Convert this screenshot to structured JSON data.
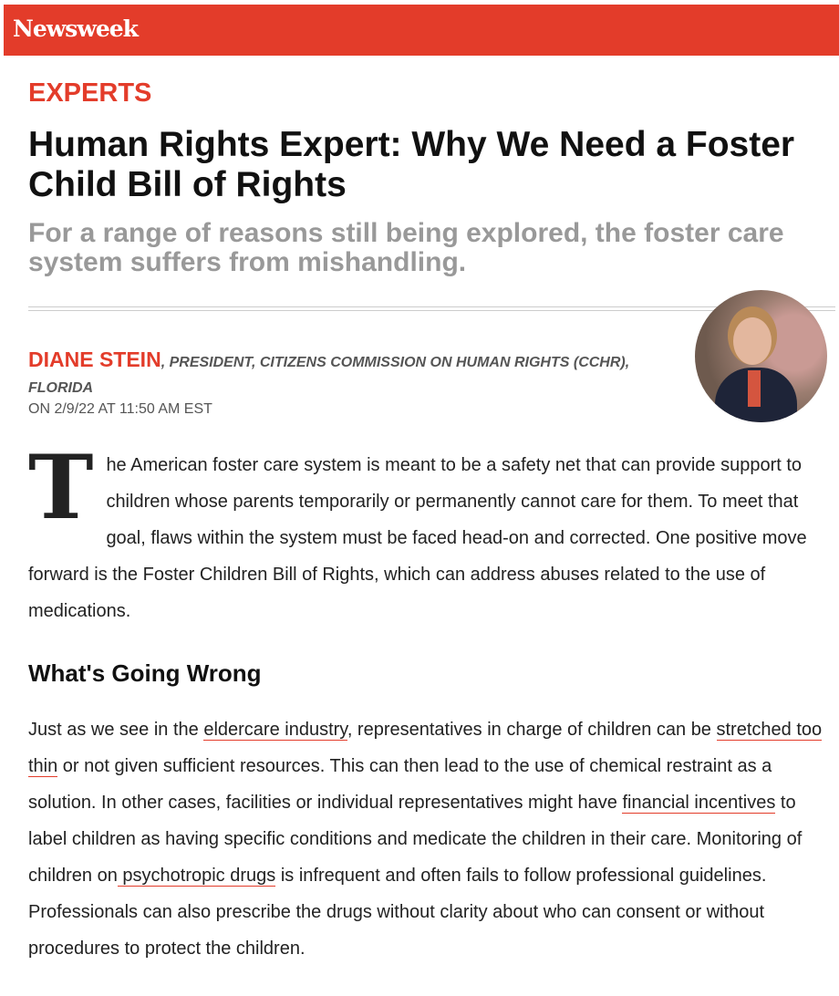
{
  "header": {
    "logo": "Newsweek",
    "brand_color": "#e33c2a"
  },
  "article": {
    "section": "EXPERTS",
    "title": "Human Rights Expert: Why We Need a Foster Child Bill of Rights",
    "subtitle": "For a range of reasons still being explored, the foster care system suffers from mishandling.",
    "author": "DIANE STEIN",
    "author_sep": ",",
    "author_role": "PRESIDENT, CITIZENS COMMISSION ON HUMAN RIGHTS (CCHR), FLORIDA",
    "date": "ON 2/9/22 AT 11:50 AM EST",
    "intro": {
      "dropcap": "T",
      "text": "he American foster care system is meant to be a safety net that can provide support to children whose parents temporarily or permanently cannot care for them. To meet that goal, flaws within the system must be faced head-on and corrected. One positive move forward is the Foster Children Bill of Rights, which can address abuses related to the use of medications."
    },
    "heading": "What's Going Wrong",
    "para2": {
      "t1": "Just as we see in the ",
      "link1": "eldercare industry",
      "t2": ", representatives in charge of children can be ",
      "link2": "stretched too thin",
      "t3": " or not given sufficient resources. This can then lead to the use of chemical restraint as a solution. In other cases, facilities or individual representatives might have ",
      "link3": "financial incentives",
      "t4": " to label children as having specific conditions and medicate the children in their care. Monitoring of children on",
      "link4": " psychotropic drugs",
      "t5": " is infrequent and often fails to follow professional guidelines. Professionals can also prescribe the drugs without clarity about who can consent or without procedures to protect the children."
    }
  }
}
